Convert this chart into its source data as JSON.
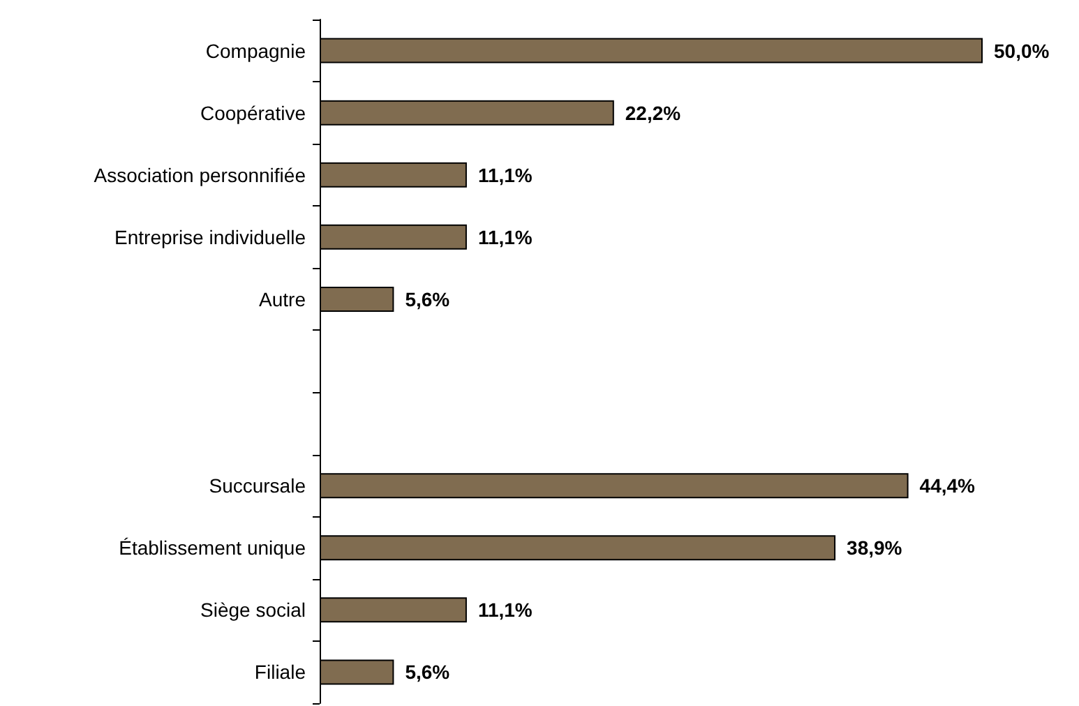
{
  "chart_data": {
    "type": "bar",
    "orientation": "horizontal",
    "categories": [
      "Compagnie",
      "Coopérative",
      "Association personnifiée",
      "Entreprise individuelle",
      "Autre",
      null,
      null,
      "Succursale",
      "Établissement unique",
      "Siège social",
      "Filiale"
    ],
    "values": [
      50.0,
      22.2,
      11.1,
      11.1,
      5.6,
      null,
      null,
      44.4,
      38.9,
      11.1,
      5.6
    ],
    "value_labels": [
      "50,0%",
      "22,2%",
      "11,1%",
      "11,1%",
      "5,6%",
      null,
      null,
      "44,4%",
      "38,9%",
      "11,1%",
      "5,6%"
    ],
    "color": "#806c50"
  }
}
